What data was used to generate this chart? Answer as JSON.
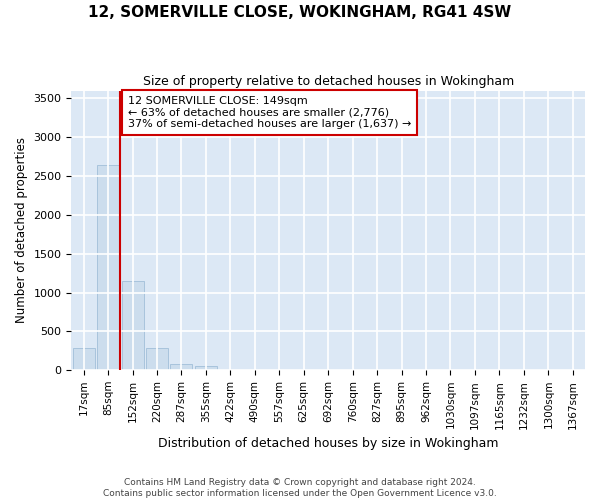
{
  "title": "12, SOMERVILLE CLOSE, WOKINGHAM, RG41 4SW",
  "subtitle": "Size of property relative to detached houses in Wokingham",
  "xlabel": "Distribution of detached houses by size in Wokingham",
  "ylabel": "Number of detached properties",
  "bar_color": "#ccdded",
  "bar_edge_color": "#a8c4dc",
  "background_color": "#dce8f5",
  "grid_color": "#ffffff",
  "annotation_box_color": "#cc0000",
  "annotation_line_color": "#cc0000",
  "annotation_text_line1": "12 SOMERVILLE CLOSE: 149sqm",
  "annotation_text_line2": "← 63% of detached houses are smaller (2,776)",
  "annotation_text_line3": "37% of semi-detached houses are larger (1,637) →",
  "footer_line1": "Contains HM Land Registry data © Crown copyright and database right 2024.",
  "footer_line2": "Contains public sector information licensed under the Open Government Licence v3.0.",
  "bin_labels": [
    "17sqm",
    "85sqm",
    "152sqm",
    "220sqm",
    "287sqm",
    "355sqm",
    "422sqm",
    "490sqm",
    "557sqm",
    "625sqm",
    "692sqm",
    "760sqm",
    "827sqm",
    "895sqm",
    "962sqm",
    "1030sqm",
    "1097sqm",
    "1165sqm",
    "1232sqm",
    "1300sqm",
    "1367sqm"
  ],
  "bin_values": [
    280,
    2640,
    1150,
    280,
    85,
    50,
    0,
    0,
    0,
    0,
    0,
    0,
    0,
    0,
    0,
    0,
    0,
    0,
    0,
    0,
    0
  ],
  "ylim": [
    0,
    3600
  ],
  "yticks": [
    0,
    500,
    1000,
    1500,
    2000,
    2500,
    3000,
    3500
  ],
  "red_line_x": 2,
  "fig_width": 6.0,
  "fig_height": 5.0,
  "dpi": 100
}
